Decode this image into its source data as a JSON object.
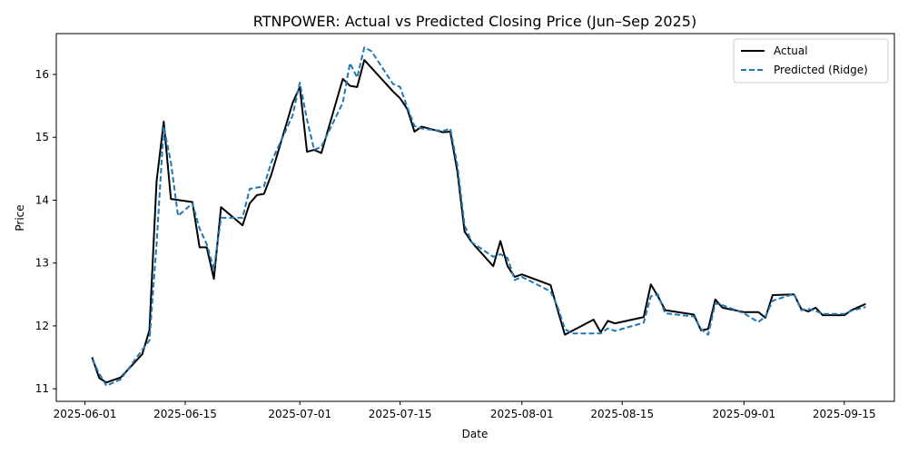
{
  "chart_data": {
    "type": "line",
    "title": "RTNPOWER: Actual vs Predicted Closing Price (Jun–Sep 2025)",
    "xlabel": "Date",
    "ylabel": "Price",
    "xlim": [
      "2025-05-28",
      "2025-09-22"
    ],
    "ylim": [
      10.8,
      16.65
    ],
    "x_ticks": [
      "2025-06-01",
      "2025-06-15",
      "2025-07-01",
      "2025-07-15",
      "2025-08-01",
      "2025-08-15",
      "2025-09-01",
      "2025-09-15"
    ],
    "y_ticks": [
      11,
      12,
      13,
      14,
      15,
      16
    ],
    "grid": false,
    "legend_position": "top-right",
    "colors": {
      "actual": "#000000",
      "predicted": "#1f77b4"
    },
    "series": [
      {
        "name": "Actual",
        "style": "solid",
        "points": [
          [
            "2025-06-02",
            11.5
          ],
          [
            "2025-06-03",
            11.17
          ],
          [
            "2025-06-04",
            11.1
          ],
          [
            "2025-06-06",
            11.18
          ],
          [
            "2025-06-09",
            11.55
          ],
          [
            "2025-06-10",
            11.93
          ],
          [
            "2025-06-11",
            14.3
          ],
          [
            "2025-06-12",
            15.25
          ],
          [
            "2025-06-13",
            14.02
          ],
          [
            "2025-06-16",
            13.97
          ],
          [
            "2025-06-17",
            13.25
          ],
          [
            "2025-06-18",
            13.25
          ],
          [
            "2025-06-19",
            12.75
          ],
          [
            "2025-06-20",
            13.89
          ],
          [
            "2025-06-23",
            13.6
          ],
          [
            "2025-06-24",
            13.95
          ],
          [
            "2025-06-25",
            14.08
          ],
          [
            "2025-06-26",
            14.1
          ],
          [
            "2025-06-27",
            14.4
          ],
          [
            "2025-06-30",
            15.55
          ],
          [
            "2025-07-01",
            15.8
          ],
          [
            "2025-07-02",
            14.77
          ],
          [
            "2025-07-03",
            14.8
          ],
          [
            "2025-07-04",
            14.75
          ],
          [
            "2025-07-07",
            15.93
          ],
          [
            "2025-07-08",
            15.82
          ],
          [
            "2025-07-09",
            15.8
          ],
          [
            "2025-07-10",
            16.23
          ],
          [
            "2025-07-14",
            15.73
          ],
          [
            "2025-07-15",
            15.62
          ],
          [
            "2025-07-16",
            15.45
          ],
          [
            "2025-07-17",
            15.09
          ],
          [
            "2025-07-18",
            15.17
          ],
          [
            "2025-07-21",
            15.08
          ],
          [
            "2025-07-22",
            15.09
          ],
          [
            "2025-07-23",
            14.45
          ],
          [
            "2025-07-24",
            13.5
          ],
          [
            "2025-07-25",
            13.33
          ],
          [
            "2025-07-28",
            12.95
          ],
          [
            "2025-07-29",
            13.35
          ],
          [
            "2025-07-30",
            12.95
          ],
          [
            "2025-07-31",
            12.78
          ],
          [
            "2025-08-01",
            12.82
          ],
          [
            "2025-08-05",
            12.65
          ],
          [
            "2025-08-06",
            12.25
          ],
          [
            "2025-08-07",
            11.86
          ],
          [
            "2025-08-11",
            12.1
          ],
          [
            "2025-08-12",
            11.9
          ],
          [
            "2025-08-13",
            12.08
          ],
          [
            "2025-08-14",
            12.04
          ],
          [
            "2025-08-18",
            12.14
          ],
          [
            "2025-08-19",
            12.66
          ],
          [
            "2025-08-20",
            12.47
          ],
          [
            "2025-08-21",
            12.25
          ],
          [
            "2025-08-25",
            12.18
          ],
          [
            "2025-08-26",
            11.93
          ],
          [
            "2025-08-27",
            11.95
          ],
          [
            "2025-08-28",
            12.42
          ],
          [
            "2025-08-29",
            12.29
          ],
          [
            "2025-09-01",
            12.22
          ],
          [
            "2025-09-03",
            12.22
          ],
          [
            "2025-09-04",
            12.13
          ],
          [
            "2025-09-05",
            12.49
          ],
          [
            "2025-09-08",
            12.5
          ],
          [
            "2025-09-09",
            12.27
          ],
          [
            "2025-09-10",
            12.23
          ],
          [
            "2025-09-11",
            12.29
          ],
          [
            "2025-09-12",
            12.17
          ],
          [
            "2025-09-15",
            12.17
          ],
          [
            "2025-09-16",
            12.25
          ],
          [
            "2025-09-18",
            12.35
          ]
        ]
      },
      {
        "name": "Predicted (Ridge)",
        "style": "dashed",
        "points": [
          [
            "2025-06-02",
            11.47
          ],
          [
            "2025-06-03",
            11.24
          ],
          [
            "2025-06-04",
            11.05
          ],
          [
            "2025-06-06",
            11.15
          ],
          [
            "2025-06-09",
            11.62
          ],
          [
            "2025-06-10",
            11.77
          ],
          [
            "2025-06-11",
            13.3
          ],
          [
            "2025-06-12",
            15.17
          ],
          [
            "2025-06-13",
            14.6
          ],
          [
            "2025-06-14",
            13.75
          ],
          [
            "2025-06-16",
            13.95
          ],
          [
            "2025-06-17",
            13.55
          ],
          [
            "2025-06-18",
            13.3
          ],
          [
            "2025-06-19",
            12.9
          ],
          [
            "2025-06-20",
            13.72
          ],
          [
            "2025-06-23",
            13.72
          ],
          [
            "2025-06-24",
            14.18
          ],
          [
            "2025-06-26",
            14.22
          ],
          [
            "2025-06-27",
            14.6
          ],
          [
            "2025-06-30",
            15.35
          ],
          [
            "2025-07-01",
            15.87
          ],
          [
            "2025-07-02",
            15.28
          ],
          [
            "2025-07-03",
            14.8
          ],
          [
            "2025-07-04",
            14.85
          ],
          [
            "2025-07-07",
            15.55
          ],
          [
            "2025-07-08",
            16.18
          ],
          [
            "2025-07-09",
            15.95
          ],
          [
            "2025-07-10",
            16.43
          ],
          [
            "2025-07-11",
            16.37
          ],
          [
            "2025-07-14",
            15.85
          ],
          [
            "2025-07-15",
            15.8
          ],
          [
            "2025-07-16",
            15.48
          ],
          [
            "2025-07-17",
            15.18
          ],
          [
            "2025-07-18",
            15.14
          ],
          [
            "2025-07-21",
            15.1
          ],
          [
            "2025-07-22",
            15.14
          ],
          [
            "2025-07-23",
            14.55
          ],
          [
            "2025-07-24",
            13.6
          ],
          [
            "2025-07-25",
            13.33
          ],
          [
            "2025-07-28",
            13.1
          ],
          [
            "2025-07-29",
            13.14
          ],
          [
            "2025-07-30",
            13.08
          ],
          [
            "2025-07-31",
            12.73
          ],
          [
            "2025-08-01",
            12.78
          ],
          [
            "2025-08-05",
            12.55
          ],
          [
            "2025-08-06",
            12.3
          ],
          [
            "2025-08-07",
            11.95
          ],
          [
            "2025-08-08",
            11.88
          ],
          [
            "2025-08-11",
            11.88
          ],
          [
            "2025-08-12",
            11.88
          ],
          [
            "2025-08-13",
            11.96
          ],
          [
            "2025-08-14",
            11.92
          ],
          [
            "2025-08-18",
            12.05
          ],
          [
            "2025-08-19",
            12.47
          ],
          [
            "2025-08-20",
            12.5
          ],
          [
            "2025-08-21",
            12.2
          ],
          [
            "2025-08-25",
            12.15
          ],
          [
            "2025-08-26",
            11.95
          ],
          [
            "2025-08-27",
            11.86
          ],
          [
            "2025-08-28",
            12.36
          ],
          [
            "2025-08-29",
            12.33
          ],
          [
            "2025-09-01",
            12.2
          ],
          [
            "2025-09-03",
            12.06
          ],
          [
            "2025-09-04",
            12.15
          ],
          [
            "2025-09-05",
            12.4
          ],
          [
            "2025-09-08",
            12.51
          ],
          [
            "2025-09-09",
            12.25
          ],
          [
            "2025-09-10",
            12.27
          ],
          [
            "2025-09-11",
            12.24
          ],
          [
            "2025-09-12",
            12.19
          ],
          [
            "2025-09-15",
            12.19
          ],
          [
            "2025-09-16",
            12.24
          ],
          [
            "2025-09-18",
            12.3
          ]
        ]
      }
    ]
  }
}
